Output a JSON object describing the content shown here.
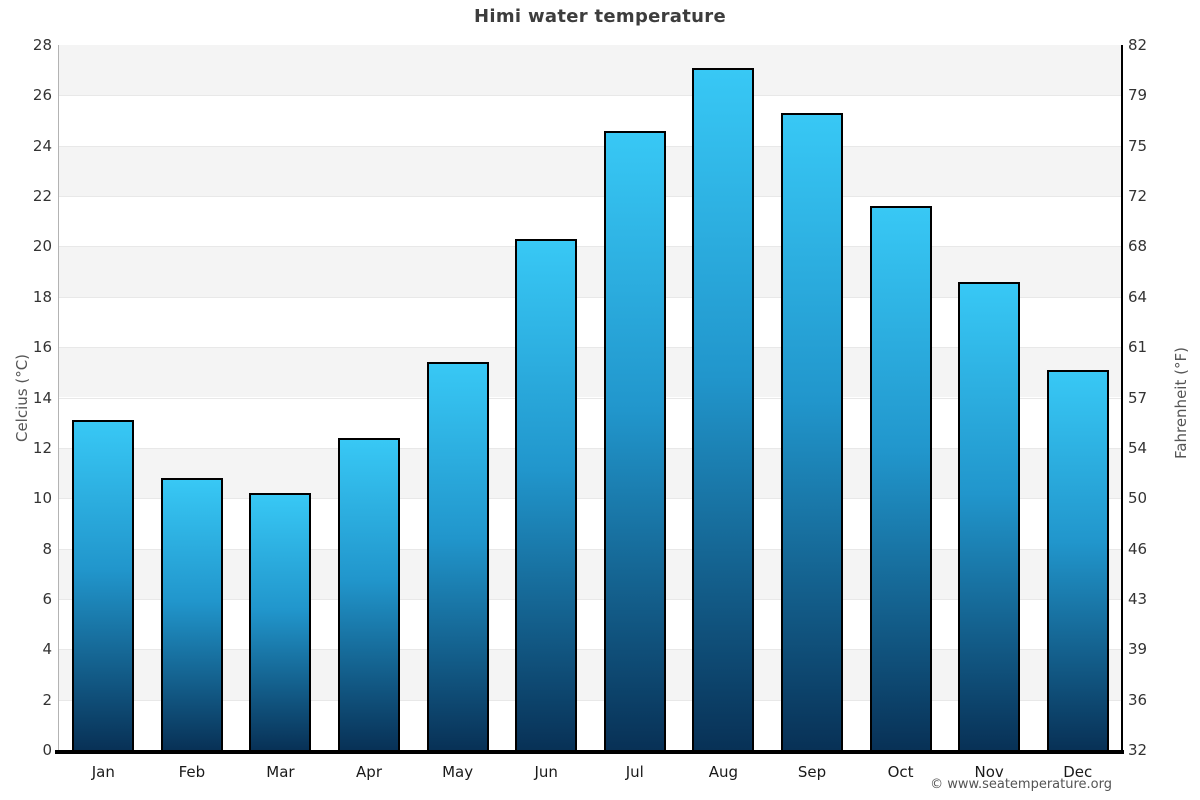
{
  "page": {
    "title": "Himi water temperature",
    "footer_credit": "© www.seatemperature.org"
  },
  "chart_data": {
    "type": "bar",
    "title": "Himi water temperature",
    "categories": [
      "Jan",
      "Feb",
      "Mar",
      "Apr",
      "May",
      "Jun",
      "Jul",
      "Aug",
      "Sep",
      "Oct",
      "Nov",
      "Dec"
    ],
    "values": [
      13.1,
      10.8,
      10.2,
      12.4,
      15.4,
      20.3,
      24.6,
      27.1,
      25.3,
      21.6,
      18.6,
      15.1
    ],
    "unit": "°C",
    "ylabel_left": "Celcius (°C)",
    "ylabel_right": "Fahrenheit (°F)",
    "ylim": [
      0,
      28
    ],
    "yticks_left_celsius": [
      0,
      2,
      4,
      6,
      8,
      10,
      12,
      14,
      16,
      18,
      20,
      22,
      24,
      26,
      28
    ],
    "yticks_right_fahrenheit": [
      32,
      36,
      39,
      43,
      46,
      50,
      54,
      57,
      61,
      64,
      68,
      72,
      75,
      79,
      82
    ],
    "xlabel": "",
    "grid": "horizontal alternating bands every 2°C",
    "legend": "none",
    "colors": {
      "bar_gradient_top": "#38c8f5",
      "bar_gradient_mid": "#2196cc",
      "bar_gradient_bottom": "#083156",
      "bar_border": "#000000",
      "band_gray": "#f4f4f4",
      "band_white": "#ffffff",
      "gridline": "#e8e8e8",
      "left_spine": "#b3b3b3",
      "right_spine": "#000000",
      "bottom_axis": "#000000",
      "title_text": "#3d3d3d",
      "tick_text": "#333333",
      "axis_label_text": "#555555",
      "footer_text": "#545454"
    }
  }
}
